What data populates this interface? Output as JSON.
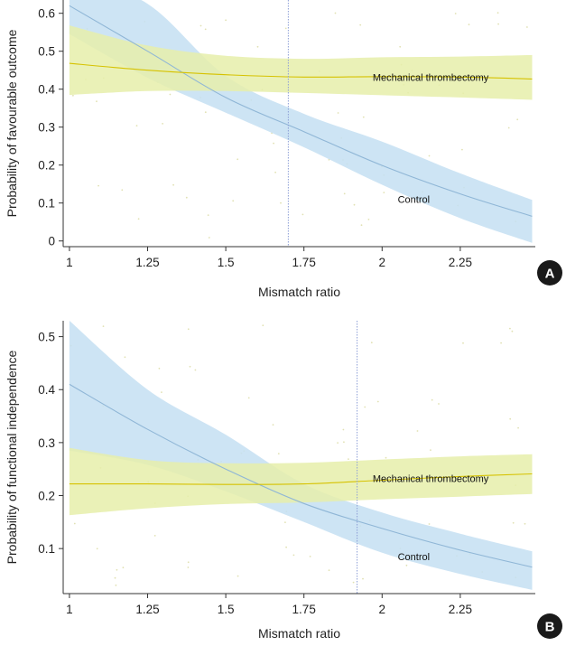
{
  "colors": {
    "control_band": "#c4dff2",
    "control_line": "#8fb6d6",
    "thrombectomy_band": "#e6efaa",
    "thrombectomy_line": "#d6c200",
    "threshold_line": "#8d9fd6",
    "scatter_dot": "#d9d9a0",
    "axis": "#333333",
    "badge": "#1a1a1a"
  },
  "chart_data": [
    {
      "type": "line",
      "panel_label": "A",
      "xlabel": "Mismatch ratio",
      "ylabel": "Probability of favourable outcome",
      "xlim": [
        0.98,
        2.49
      ],
      "ylim": [
        -0.015,
        0.635
      ],
      "xticks": [
        1,
        1.25,
        1.5,
        1.75,
        2,
        2.25
      ],
      "xtick_labels": [
        "1",
        "1.25",
        "1.5",
        "1.75",
        "2",
        "2.25"
      ],
      "yticks": [
        0,
        0.1,
        0.2,
        0.3,
        0.4,
        0.5,
        0.6
      ],
      "ytick_labels": [
        "0",
        "0.1",
        "0.2",
        "0.3",
        "0.4",
        "0.5",
        "0.6"
      ],
      "threshold_x": 1.7,
      "grid": false,
      "series": [
        {
          "name": "Mechanical thrombectomy",
          "color_key": "thrombectomy",
          "x": [
            1.0,
            1.25,
            1.5,
            1.75,
            2.0,
            2.25,
            2.48
          ],
          "y": [
            0.468,
            0.45,
            0.438,
            0.432,
            0.433,
            0.432,
            0.427
          ],
          "lower": [
            0.385,
            0.395,
            0.395,
            0.39,
            0.384,
            0.378,
            0.372
          ],
          "upper": [
            0.568,
            0.515,
            0.488,
            0.48,
            0.484,
            0.486,
            0.49
          ]
        },
        {
          "name": "Control",
          "color_key": "control",
          "x": [
            1.0,
            1.25,
            1.5,
            1.75,
            2.0,
            2.25,
            2.48
          ],
          "y": [
            0.62,
            0.5,
            0.378,
            0.288,
            0.199,
            0.124,
            0.065
          ],
          "lower": [
            0.545,
            0.43,
            0.338,
            0.247,
            0.148,
            0.06,
            -0.005
          ],
          "upper": [
            0.7,
            0.625,
            0.435,
            0.335,
            0.262,
            0.178,
            0.108
          ]
        }
      ],
      "series_labels": [
        {
          "name": "Mechanical thrombectomy",
          "x": 1.97,
          "y": 0.432
        },
        {
          "name": "Control",
          "x": 2.05,
          "y": 0.11
        }
      ]
    },
    {
      "type": "line",
      "panel_label": "B",
      "xlabel": "Mismatch ratio",
      "ylabel": "Probability of functional independence",
      "xlim": [
        0.98,
        2.49
      ],
      "ylim": [
        0.015,
        0.53
      ],
      "xticks": [
        1,
        1.25,
        1.5,
        1.75,
        2,
        2.25
      ],
      "xtick_labels": [
        "1",
        "1.25",
        "1.5",
        "1.75",
        "2",
        "2.25"
      ],
      "yticks": [
        0.1,
        0.2,
        0.3,
        0.4,
        0.5
      ],
      "ytick_labels": [
        "0.1",
        "0.2",
        "0.3",
        "0.4",
        "0.5"
      ],
      "threshold_x": 1.92,
      "grid": false,
      "series": [
        {
          "name": "Mechanical thrombectomy",
          "color_key": "thrombectomy",
          "x": [
            1.0,
            1.25,
            1.5,
            1.75,
            2.0,
            2.25,
            2.48
          ],
          "y": [
            0.222,
            0.222,
            0.221,
            0.222,
            0.229,
            0.236,
            0.241
          ],
          "lower": [
            0.163,
            0.176,
            0.184,
            0.187,
            0.193,
            0.198,
            0.203
          ],
          "upper": [
            0.29,
            0.267,
            0.261,
            0.262,
            0.268,
            0.274,
            0.278
          ]
        },
        {
          "name": "Control",
          "color_key": "control",
          "x": [
            1.0,
            1.25,
            1.5,
            1.75,
            2.0,
            2.25,
            2.48
          ],
          "y": [
            0.41,
            0.325,
            0.25,
            0.185,
            0.138,
            0.097,
            0.065
          ],
          "lower": [
            0.285,
            0.258,
            0.208,
            0.15,
            0.092,
            0.052,
            0.022
          ],
          "upper": [
            0.53,
            0.4,
            0.315,
            0.222,
            0.168,
            0.128,
            0.095
          ]
        }
      ],
      "series_labels": [
        {
          "name": "Mechanical thrombectomy",
          "x": 1.97,
          "y": 0.232
        },
        {
          "name": "Control",
          "x": 2.05,
          "y": 0.085
        }
      ]
    }
  ]
}
